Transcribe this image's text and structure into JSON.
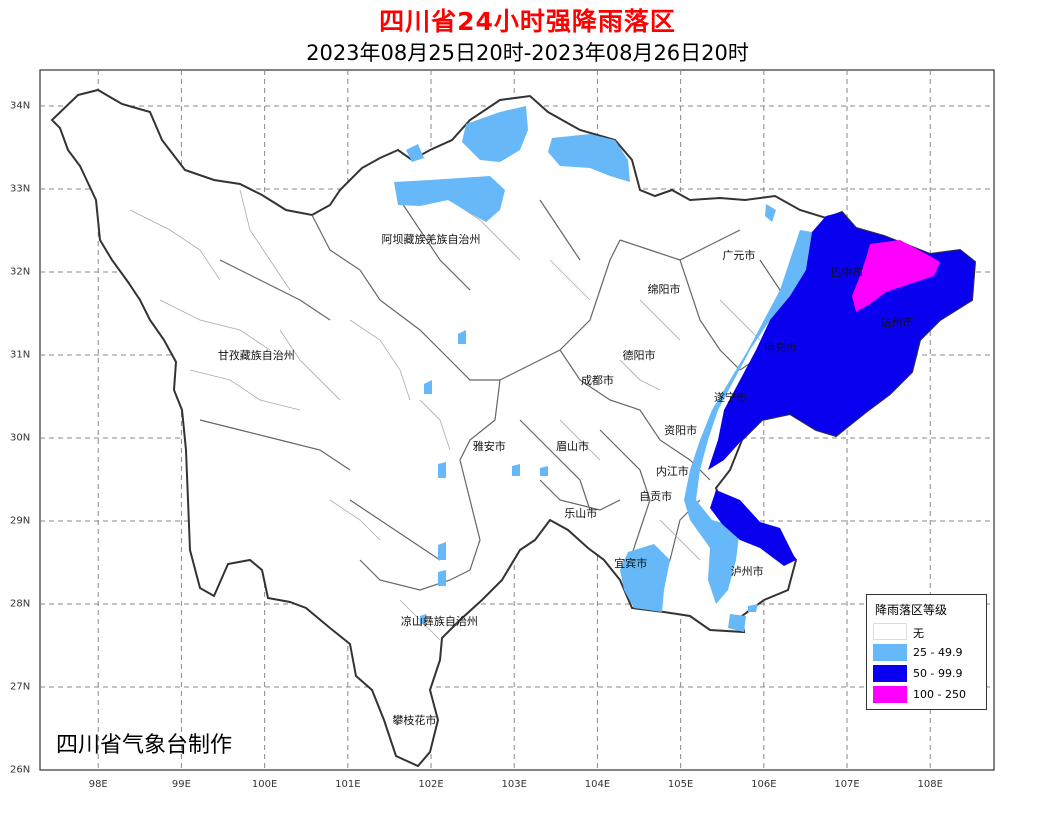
{
  "header": {
    "title": "四川省24小时强降雨落区",
    "subtitle": "2023年08月25日20时-2023年08月26日20时"
  },
  "axes": {
    "x_ticks": [
      "98E",
      "99E",
      "100E",
      "101E",
      "102E",
      "103E",
      "104E",
      "105E",
      "106E",
      "107E",
      "108E"
    ],
    "y_ticks": [
      "34N",
      "33N",
      "32N",
      "31N",
      "30N",
      "29N",
      "28N",
      "27N",
      "26N"
    ]
  },
  "places": [
    {
      "name": "阿坝藏族羌族自治州",
      "lon": 102.0,
      "lat": 32.4
    },
    {
      "name": "甘孜藏族自治州",
      "lon": 99.9,
      "lat": 31.0
    },
    {
      "name": "广元市",
      "lon": 105.7,
      "lat": 32.2
    },
    {
      "name": "绵阳市",
      "lon": 104.8,
      "lat": 31.8
    },
    {
      "name": "巴中市",
      "lon": 107.0,
      "lat": 32.0
    },
    {
      "name": "德阳市",
      "lon": 104.5,
      "lat": 31.0
    },
    {
      "name": "达州市",
      "lon": 107.6,
      "lat": 31.4
    },
    {
      "name": "南充市",
      "lon": 106.2,
      "lat": 31.1
    },
    {
      "name": "成都市",
      "lon": 104.0,
      "lat": 30.7
    },
    {
      "name": "遂宁市",
      "lon": 105.6,
      "lat": 30.5
    },
    {
      "name": "资阳市",
      "lon": 105.0,
      "lat": 30.1
    },
    {
      "name": "雅安市",
      "lon": 102.7,
      "lat": 29.9
    },
    {
      "name": "眉山市",
      "lon": 103.7,
      "lat": 29.9
    },
    {
      "name": "内江市",
      "lon": 104.9,
      "lat": 29.6
    },
    {
      "name": "乐山市",
      "lon": 103.8,
      "lat": 29.1
    },
    {
      "name": "自贡市",
      "lon": 104.7,
      "lat": 29.3
    },
    {
      "name": "宜宾市",
      "lon": 104.4,
      "lat": 28.5
    },
    {
      "name": "泸州市",
      "lon": 105.8,
      "lat": 28.4
    },
    {
      "name": "凉山彝族自治州",
      "lon": 102.1,
      "lat": 27.8
    },
    {
      "name": "攀枝花市",
      "lon": 101.8,
      "lat": 26.6
    }
  ],
  "legend": {
    "title": "降雨落区等级",
    "items": [
      {
        "label": "无",
        "color": "#ffffff"
      },
      {
        "label": "25 - 49.9",
        "color": "#66b8f8"
      },
      {
        "label": "50 - 99.9",
        "color": "#0a00f0"
      },
      {
        "label": "100 - 250",
        "color": "#ff00ff"
      }
    ]
  },
  "credit": "四川省气象台制作"
}
